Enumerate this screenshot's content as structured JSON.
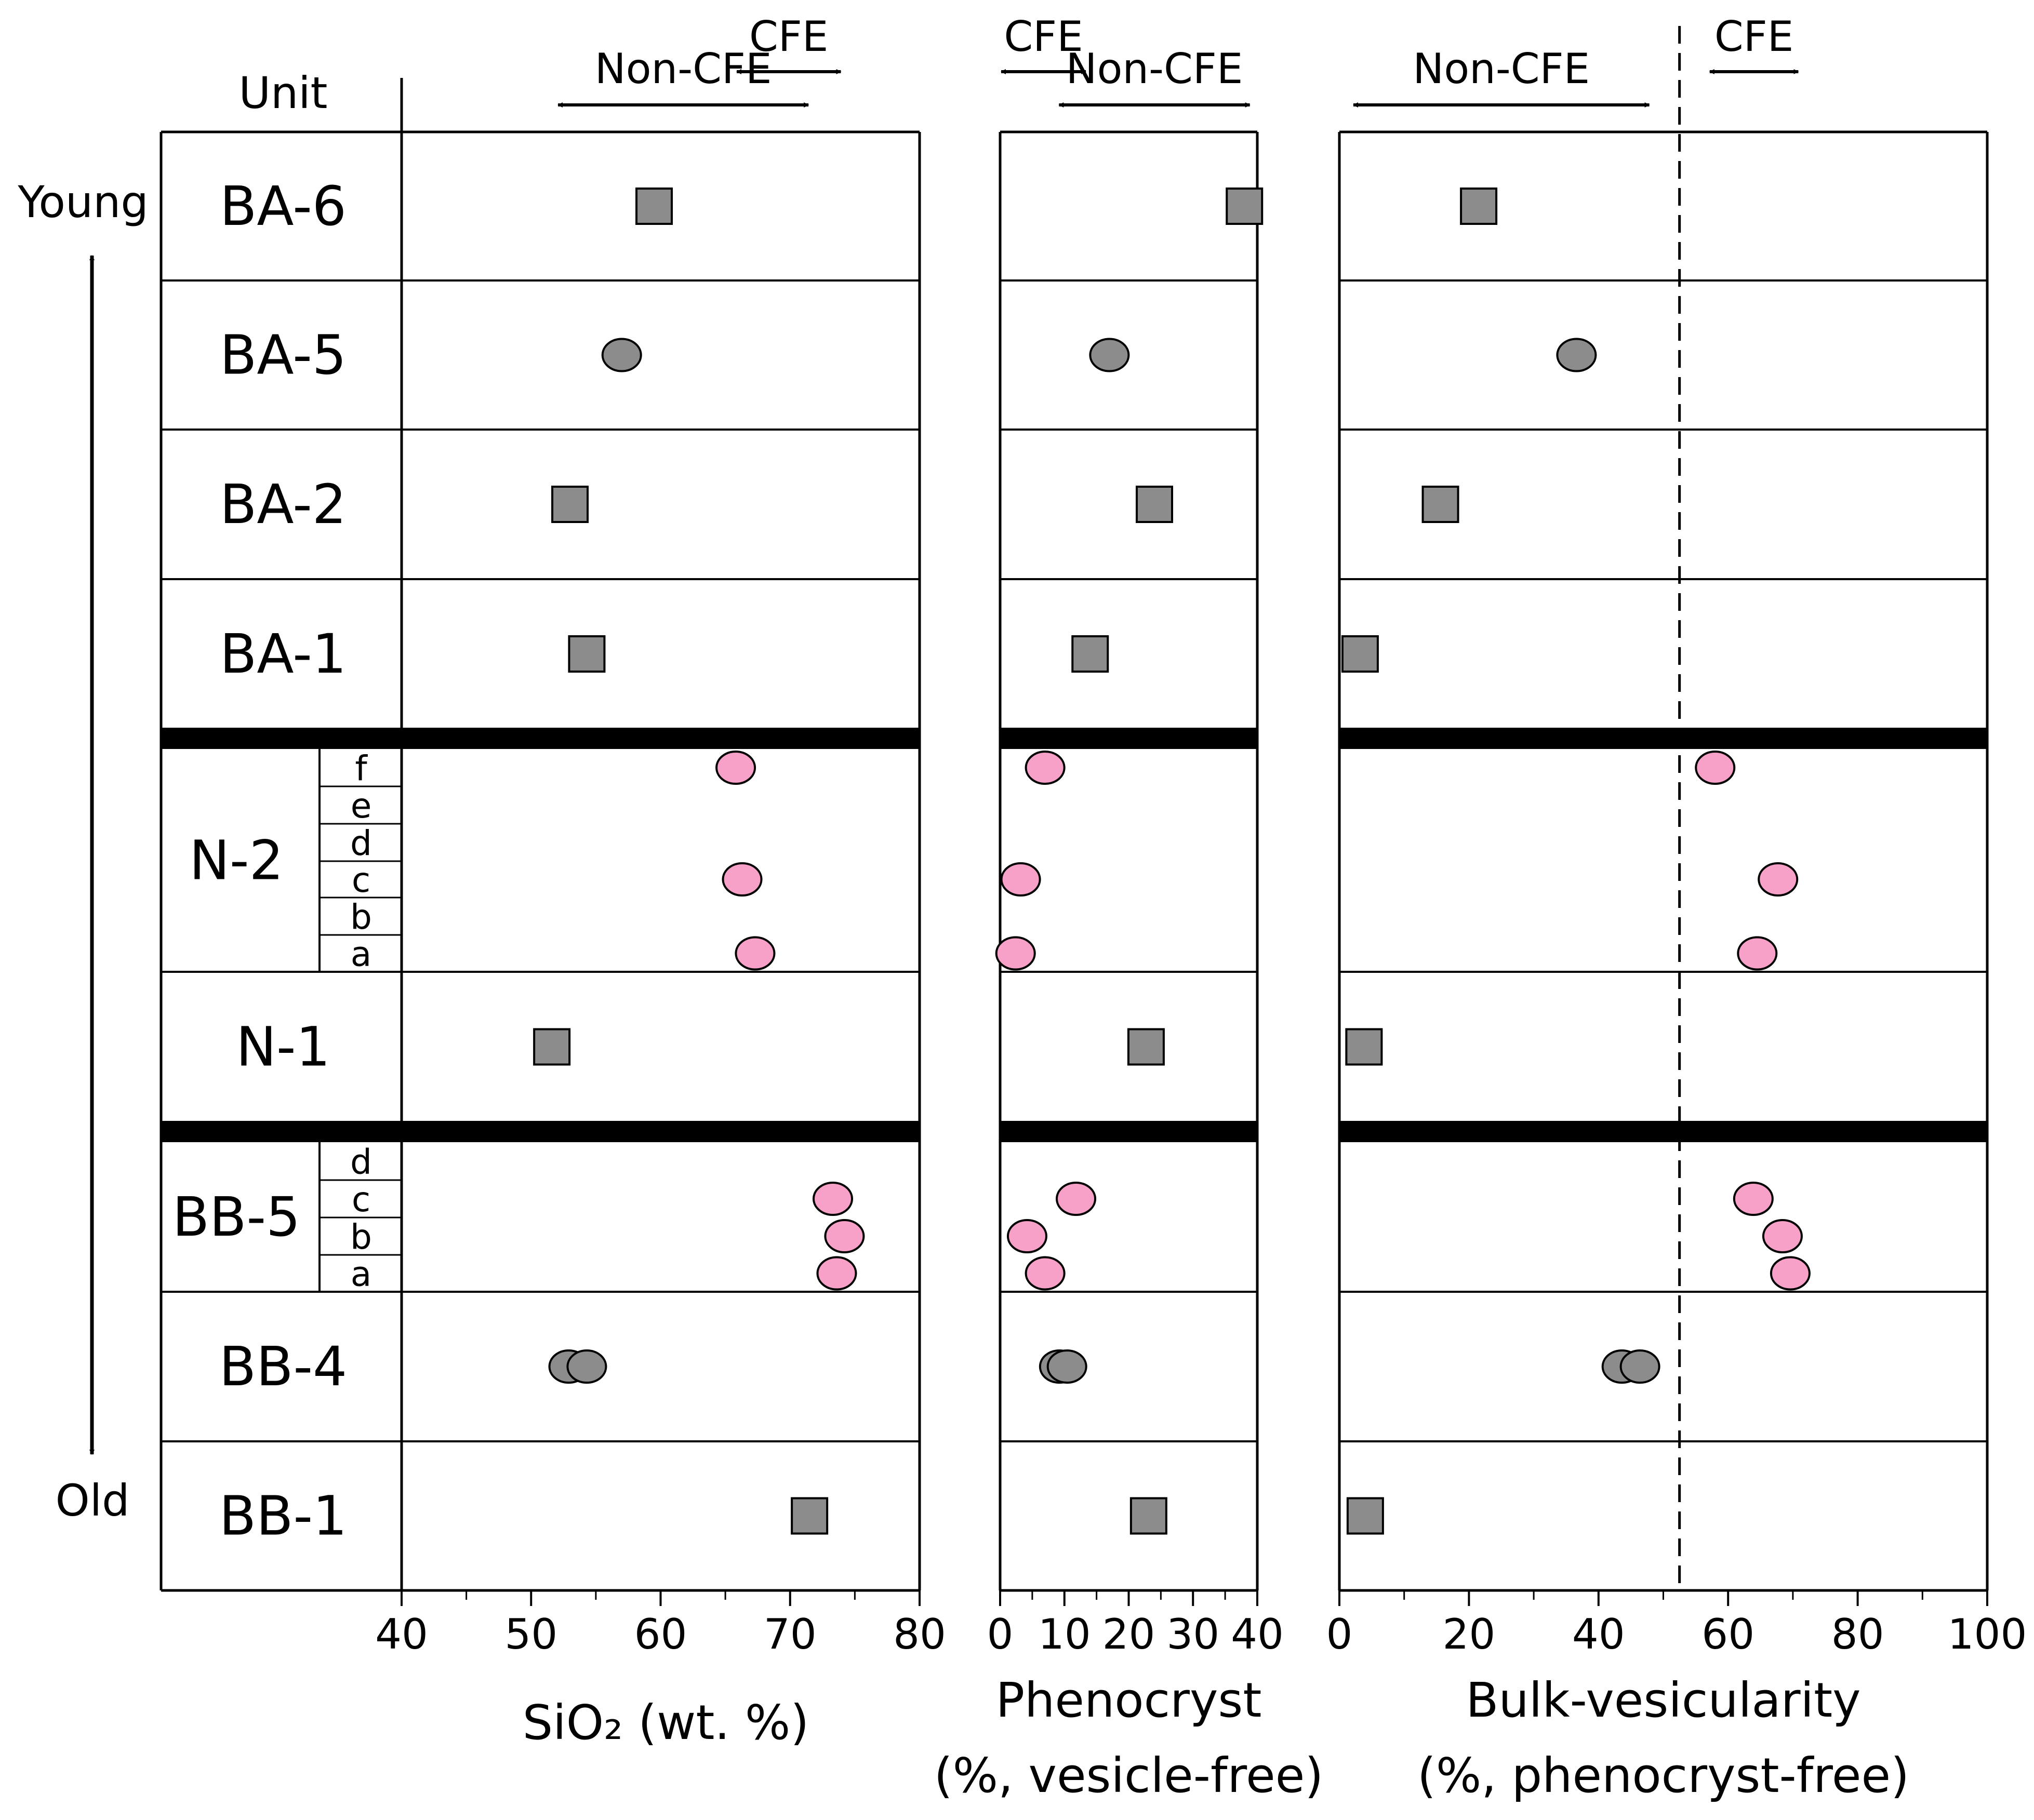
{
  "colors": {
    "marker_gray": "#8c8c8c",
    "marker_pink": "#f7a0c8",
    "line": "#000000",
    "background": "#ffffff"
  },
  "labels": {
    "unit_header": "Unit",
    "young": "Young",
    "old": "Old"
  },
  "units": [
    {
      "id": "BA-6",
      "label": "BA-6"
    },
    {
      "id": "BA-5",
      "label": "BA-5"
    },
    {
      "id": "BA-2",
      "label": "BA-2"
    },
    {
      "id": "BA-1",
      "label": "BA-1"
    },
    {
      "id": "N-2",
      "label": "N-2",
      "subunits": [
        "f",
        "e",
        "d",
        "c",
        "b",
        "a"
      ]
    },
    {
      "id": "N-1",
      "label": "N-1"
    },
    {
      "id": "BB-5",
      "label": "BB-5",
      "subunits": [
        "d",
        "c",
        "b",
        "a"
      ]
    },
    {
      "id": "BB-4",
      "label": "BB-4"
    },
    {
      "id": "BB-1",
      "label": "BB-1"
    }
  ],
  "chart_data": [
    {
      "type": "scatter",
      "panel": "sio2",
      "xlabel": "SiO₂ (wt. %)",
      "xlim": [
        40,
        80
      ],
      "xticks": [
        {
          "value": 40,
          "label": "40"
        },
        {
          "value": 50,
          "label": "50"
        },
        {
          "value": 60,
          "label": "60"
        },
        {
          "value": 70,
          "label": "70"
        },
        {
          "value": 80,
          "label": "80"
        }
      ],
      "range_annotations": [
        {
          "label": "Non-CFE",
          "range": [
            52,
            71.5
          ]
        },
        {
          "label": "CFE",
          "range": [
            65.8,
            74
          ]
        }
      ],
      "points": [
        {
          "unit": "BA-6",
          "value": 59.5,
          "marker": "square",
          "color": "gray"
        },
        {
          "unit": "BA-5",
          "value": 57,
          "marker": "circle",
          "color": "gray"
        },
        {
          "unit": "BA-2",
          "value": 53,
          "marker": "square",
          "color": "gray"
        },
        {
          "unit": "BA-1",
          "value": 54.3,
          "marker": "square",
          "color": "gray"
        },
        {
          "unit": "N-2",
          "sub": "f",
          "value": 65.8,
          "marker": "circle",
          "color": "pink"
        },
        {
          "unit": "N-2",
          "sub": "c",
          "value": 66.3,
          "marker": "circle",
          "color": "pink"
        },
        {
          "unit": "N-2",
          "sub": "a",
          "value": 67.3,
          "marker": "circle",
          "color": "pink"
        },
        {
          "unit": "N-1",
          "value": 51.6,
          "marker": "square",
          "color": "gray"
        },
        {
          "unit": "BB-5",
          "sub": "c",
          "value": 73.3,
          "marker": "circle",
          "color": "pink"
        },
        {
          "unit": "BB-5",
          "sub": "b",
          "value": 74.2,
          "marker": "circle",
          "color": "pink"
        },
        {
          "unit": "BB-5",
          "sub": "a",
          "value": 73.6,
          "marker": "circle",
          "color": "pink"
        },
        {
          "unit": "BB-4",
          "value": 52.9,
          "marker": "circle",
          "color": "gray"
        },
        {
          "unit": "BB-4",
          "value": 54.3,
          "marker": "circle",
          "color": "gray"
        },
        {
          "unit": "BB-1",
          "value": 71.5,
          "marker": "square",
          "color": "gray"
        }
      ]
    },
    {
      "type": "scatter",
      "panel": "phenocryst",
      "xlabel": "Phenocryst",
      "xlabel2": "(%, vesicle-free)",
      "xlim": [
        0,
        40
      ],
      "xticks": [
        {
          "value": 0,
          "label": "0"
        },
        {
          "value": 10,
          "label": "10"
        },
        {
          "value": 20,
          "label": "20"
        },
        {
          "value": 30,
          "label": "30"
        },
        {
          "value": 40,
          "label": "40"
        }
      ],
      "range_annotations": [
        {
          "label": "CFE",
          "range": [
            0,
            13.5
          ]
        },
        {
          "label": "Non-CFE",
          "range": [
            9,
            39
          ]
        }
      ],
      "points": [
        {
          "unit": "BA-6",
          "value": 38,
          "marker": "square",
          "color": "gray"
        },
        {
          "unit": "BA-5",
          "value": 17,
          "marker": "circle",
          "color": "gray"
        },
        {
          "unit": "BA-2",
          "value": 24,
          "marker": "square",
          "color": "gray"
        },
        {
          "unit": "BA-1",
          "value": 14,
          "marker": "square",
          "color": "gray"
        },
        {
          "unit": "N-2",
          "sub": "f",
          "value": 7,
          "marker": "circle",
          "color": "pink"
        },
        {
          "unit": "N-2",
          "sub": "c",
          "value": 3.2,
          "marker": "circle",
          "color": "pink"
        },
        {
          "unit": "N-2",
          "sub": "a",
          "value": 2.4,
          "marker": "circle",
          "color": "pink"
        },
        {
          "unit": "N-1",
          "value": 22.7,
          "marker": "square",
          "color": "gray"
        },
        {
          "unit": "BB-5",
          "sub": "c",
          "value": 11.8,
          "marker": "circle",
          "color": "pink"
        },
        {
          "unit": "BB-5",
          "sub": "b",
          "value": 4.2,
          "marker": "circle",
          "color": "pink"
        },
        {
          "unit": "BB-5",
          "sub": "a",
          "value": 7,
          "marker": "circle",
          "color": "pink"
        },
        {
          "unit": "BB-4",
          "value": 9.2,
          "marker": "circle",
          "color": "gray"
        },
        {
          "unit": "BB-4",
          "value": 10.4,
          "marker": "circle",
          "color": "gray"
        },
        {
          "unit": "BB-1",
          "value": 23.1,
          "marker": "square",
          "color": "gray"
        }
      ]
    },
    {
      "type": "scatter",
      "panel": "vesicularity",
      "xlabel": "Bulk-vesicularity",
      "xlabel2": "(%, phenocryst-free)",
      "xlim": [
        0,
        100
      ],
      "xticks": [
        {
          "value": 0,
          "label": "0"
        },
        {
          "value": 20,
          "label": "20"
        },
        {
          "value": 40,
          "label": "40"
        },
        {
          "value": 60,
          "label": "60"
        },
        {
          "value": 80,
          "label": "80"
        },
        {
          "value": 100,
          "label": "100"
        }
      ],
      "threshold": 52.5,
      "range_annotations": [
        {
          "label": "Non-CFE",
          "range": [
            2,
            48
          ]
        },
        {
          "label": "CFE",
          "range": [
            57,
            71
          ]
        }
      ],
      "points": [
        {
          "unit": "BA-6",
          "value": 21.5,
          "marker": "square",
          "color": "gray"
        },
        {
          "unit": "BA-5",
          "value": 36.6,
          "marker": "circle",
          "color": "gray"
        },
        {
          "unit": "BA-2",
          "value": 15.6,
          "marker": "square",
          "color": "gray"
        },
        {
          "unit": "BA-1",
          "value": 3.2,
          "marker": "square",
          "color": "gray"
        },
        {
          "unit": "N-2",
          "sub": "f",
          "value": 58,
          "marker": "circle",
          "color": "pink"
        },
        {
          "unit": "N-2",
          "sub": "c",
          "value": 67.7,
          "marker": "circle",
          "color": "pink"
        },
        {
          "unit": "N-2",
          "sub": "a",
          "value": 64.5,
          "marker": "circle",
          "color": "pink"
        },
        {
          "unit": "N-1",
          "value": 3.8,
          "marker": "square",
          "color": "gray"
        },
        {
          "unit": "BB-5",
          "sub": "c",
          "value": 63.9,
          "marker": "circle",
          "color": "pink"
        },
        {
          "unit": "BB-5",
          "sub": "b",
          "value": 68.4,
          "marker": "circle",
          "color": "pink"
        },
        {
          "unit": "BB-5",
          "sub": "a",
          "value": 69.6,
          "marker": "circle",
          "color": "pink"
        },
        {
          "unit": "BB-4",
          "value": 43.6,
          "marker": "circle",
          "color": "gray"
        },
        {
          "unit": "BB-4",
          "value": 46.4,
          "marker": "circle",
          "color": "gray"
        },
        {
          "unit": "BB-1",
          "value": 4,
          "marker": "square",
          "color": "gray"
        }
      ]
    }
  ]
}
